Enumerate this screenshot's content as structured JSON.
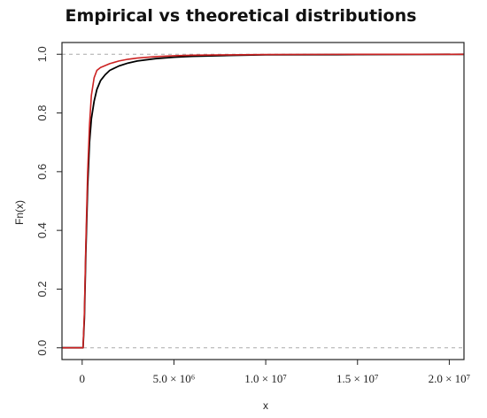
{
  "chart_data": {
    "type": "line",
    "title": "Empirical vs theoretical distributions",
    "xlabel": "x",
    "ylabel": "Fn(x)",
    "xlim": [
      -1100000,
      20800000
    ],
    "ylim": [
      -0.04,
      1.04
    ],
    "grid": false,
    "legend": "none",
    "reference_lines": [
      0.0,
      1.0
    ],
    "x_ticks": [
      {
        "value": 0,
        "label": "0"
      },
      {
        "value": 5000000,
        "label": "5.0 × 10⁶"
      },
      {
        "value": 10000000,
        "label": "1.0 × 10⁷"
      },
      {
        "value": 15000000,
        "label": "1.5 × 10⁷"
      },
      {
        "value": 20000000,
        "label": "2.0 × 10⁷"
      }
    ],
    "y_ticks": [
      {
        "value": 0.0,
        "label": "0.0"
      },
      {
        "value": 0.2,
        "label": "0.2"
      },
      {
        "value": 0.4,
        "label": "0.4"
      },
      {
        "value": 0.6,
        "label": "0.6"
      },
      {
        "value": 0.8,
        "label": "0.8"
      },
      {
        "value": 1.0,
        "label": "1.0"
      }
    ],
    "series": [
      {
        "color": "#000000",
        "x": [
          -1100000,
          50000,
          120000,
          200000,
          300000,
          400000,
          500000,
          650000,
          800000,
          1000000,
          1250000,
          1500000,
          2000000,
          2500000,
          3000000,
          4000000,
          5000000,
          6000000,
          8000000,
          10000000,
          15000000,
          20800000
        ],
        "y": [
          0.0,
          0.0,
          0.1,
          0.32,
          0.55,
          0.7,
          0.78,
          0.84,
          0.88,
          0.91,
          0.93,
          0.945,
          0.96,
          0.97,
          0.977,
          0.985,
          0.99,
          0.993,
          0.996,
          0.998,
          0.999,
          1.0
        ]
      },
      {
        "color": "#cc2222",
        "x": [
          -1100000,
          50000,
          120000,
          200000,
          300000,
          400000,
          500000,
          650000,
          800000,
          1000000,
          1200000,
          1500000,
          2000000,
          2500000,
          3000000,
          4000000,
          5000000,
          6000000,
          8000000,
          10000000,
          15000000,
          20800000
        ],
        "y": [
          0.0,
          0.0,
          0.12,
          0.35,
          0.6,
          0.76,
          0.86,
          0.92,
          0.945,
          0.955,
          0.96,
          0.968,
          0.977,
          0.983,
          0.987,
          0.992,
          0.995,
          0.997,
          0.998,
          0.999,
          1.0,
          1.0
        ]
      }
    ]
  }
}
